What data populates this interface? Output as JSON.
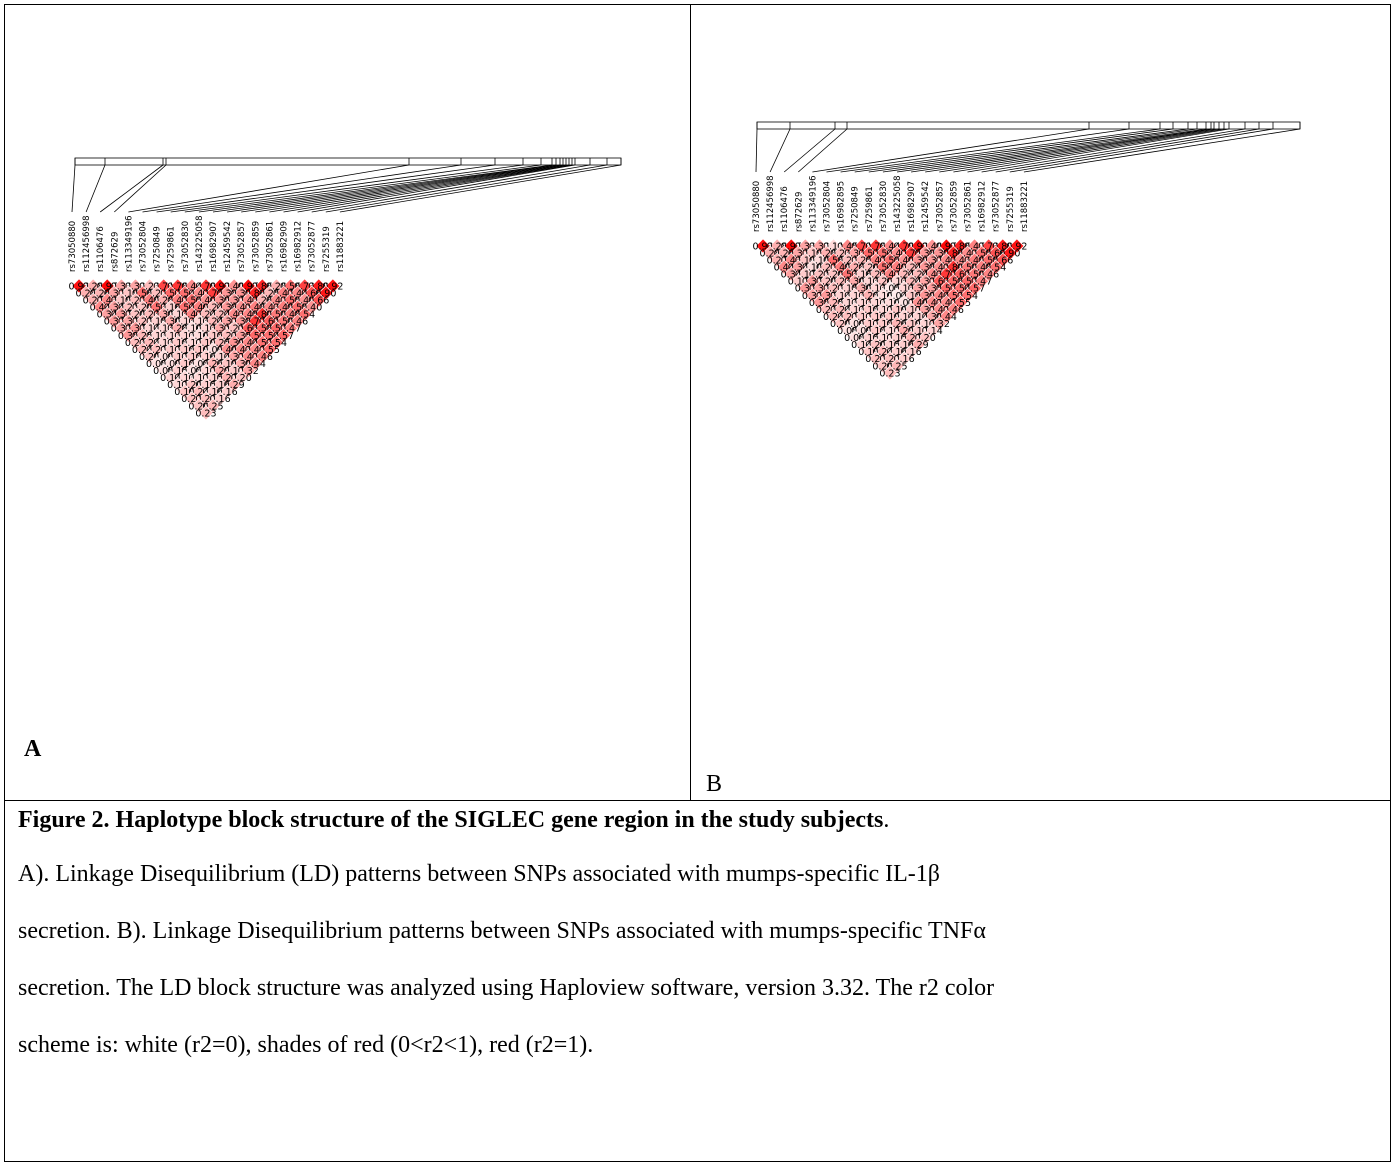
{
  "panels": [
    {
      "id": "A",
      "letter": "A",
      "snps": [
        "rs73050880",
        "rs112456998",
        "rs1106476",
        "rs872629",
        "rs113349196",
        "rs73052804",
        "rs7250849",
        "rs7259861",
        "rs73052830",
        "rs143225058",
        "rs16982907",
        "rs12459542",
        "rs73052857",
        "rs73052859",
        "rs73052861",
        "rs16982909",
        "rs16982912",
        "rs73052877",
        "rs7255319",
        "rs11883221"
      ],
      "ld_rows": [
        [
          0.93,
          0.28,
          0.97,
          0.33,
          0.32,
          0.23,
          0.71,
          0.78,
          0.44,
          0.79,
          0.92,
          0.4,
          0.97,
          0.86,
          0.28,
          0.56,
          0.73,
          0.89,
          0.92
        ],
        [
          0.28,
          0.26,
          0.32,
          0.19,
          0.56,
          0.22,
          0.57,
          0.54,
          0.42,
          0.75,
          0.38,
          0.39,
          0.86,
          0.25,
          0.47,
          0.44,
          0.66,
          0.9
        ],
        [
          0.27,
          0.43,
          0.19,
          0.22,
          0.49,
          0.28,
          0.47,
          0.55,
          0.4,
          0.39,
          0.37,
          0.43,
          0.26,
          0.42,
          0.55,
          0.4,
          0.66
        ],
        [
          0.44,
          0.34,
          0.21,
          0.2,
          0.53,
          0.16,
          0.54,
          0.49,
          0.24,
          0.38,
          0.41,
          0.48,
          0.43,
          0.49,
          0.55,
          0.4
        ],
        [
          0.34,
          0.37,
          0.2,
          0.23,
          0.3,
          0.13,
          0.47,
          0.24,
          0.24,
          0.43,
          0.45,
          0.8,
          0.5,
          0.48,
          0.54
        ],
        [
          0.37,
          0.32,
          0.22,
          0.15,
          0.3,
          0.13,
          0.13,
          0.24,
          0.32,
          0.38,
          0.77,
          0.61,
          0.5,
          0.46
        ],
        [
          0.32,
          0.37,
          0.14,
          0.13,
          0.28,
          0.1,
          0.13,
          0.31,
          0.21,
          0.63,
          0.58,
          0.57,
          0.47
        ],
        [
          0.38,
          0.25,
          0.13,
          0.13,
          0.13,
          0.1,
          0.18,
          0.23,
          0.35,
          0.57,
          0.54,
          0.57
        ],
        [
          0.23,
          0.24,
          0.13,
          0.18,
          0.12,
          0.19,
          0.25,
          0.39,
          0.44,
          0.53,
          0.54
        ],
        [
          0.24,
          0.22,
          0.17,
          0.18,
          0.19,
          0.09,
          0.4,
          0.43,
          0.42,
          0.55
        ],
        [
          0.2,
          0.09,
          0.17,
          0.18,
          0.16,
          0.14,
          0.32,
          0.42,
          0.46
        ],
        [
          0.08,
          0.09,
          0.18,
          0.08,
          0.26,
          0.19,
          0.3,
          0.44
        ],
        [
          0.08,
          0.15,
          0.08,
          0.12,
          0.29,
          0.17,
          0.32
        ],
        [
          0.14,
          0.13,
          0.12,
          0.15,
          0.27,
          0.2
        ],
        [
          0.12,
          0.2,
          0.15,
          0.16,
          0.29
        ],
        [
          0.19,
          0.24,
          0.16,
          0.16
        ],
        [
          0.22,
          0.22,
          0.16
        ],
        [
          0.2,
          0.25
        ],
        [
          0.23
        ]
      ]
    },
    {
      "id": "B",
      "letter": "B",
      "snps": [
        "rs73050880",
        "rs112456998",
        "rs1106476",
        "rs872629",
        "rs113349196",
        "rs73052804",
        "rs16982895",
        "rs7250849",
        "rs7259861",
        "rs73052830",
        "rs143225058",
        "rs16982907",
        "rs12459542",
        "rs73052857",
        "rs73052859",
        "rs73052861",
        "rs16982912",
        "rs73052877",
        "rs7255319",
        "rs11883221"
      ],
      "ld_rows": [
        [
          0.93,
          0.28,
          0.97,
          0.33,
          0.32,
          0.11,
          0.45,
          0.71,
          0.78,
          0.44,
          0.79,
          0.92,
          0.4,
          0.97,
          0.86,
          0.47,
          0.73,
          0.89,
          0.92
        ],
        [
          0.28,
          0.26,
          0.32,
          0.19,
          0.28,
          0.23,
          0.33,
          0.57,
          0.54,
          0.42,
          0.75,
          0.38,
          0.39,
          0.86,
          0.42,
          0.55,
          0.66,
          0.9
        ],
        [
          0.27,
          0.43,
          0.19,
          0.1,
          0.56,
          0.22,
          0.25,
          0.47,
          0.55,
          0.4,
          0.39,
          0.37,
          0.43,
          0.43,
          0.49,
          0.55,
          0.66
        ],
        [
          0.44,
          0.34,
          0.1,
          0.22,
          0.49,
          0.28,
          0.2,
          0.54,
          0.49,
          0.24,
          0.38,
          0.41,
          0.8,
          0.5,
          0.48,
          0.54
        ],
        [
          0.34,
          0.17,
          0.21,
          0.2,
          0.53,
          0.16,
          0.23,
          0.47,
          0.24,
          0.24,
          0.43,
          0.77,
          0.61,
          0.5,
          0.46
        ],
        [
          0.17,
          0.37,
          0.2,
          0.23,
          0.3,
          0.13,
          0.2,
          0.13,
          0.24,
          0.32,
          0.63,
          0.58,
          0.57,
          0.47
        ],
        [
          0.37,
          0.32,
          0.22,
          0.15,
          0.3,
          0.13,
          0.05,
          0.13,
          0.31,
          0.35,
          0.57,
          0.54,
          0.57
        ],
        [
          0.32,
          0.37,
          0.14,
          0.13,
          0.28,
          0.1,
          0.04,
          0.18,
          0.39,
          0.44,
          0.53,
          0.54
        ],
        [
          0.38,
          0.25,
          0.13,
          0.13,
          0.13,
          0.1,
          0.07,
          0.4,
          0.43,
          0.42,
          0.55
        ],
        [
          0.23,
          0.24,
          0.13,
          0.18,
          0.12,
          0.19,
          0.17,
          0.32,
          0.42,
          0.46
        ],
        [
          0.24,
          0.22,
          0.17,
          0.18,
          0.19,
          0.14,
          0.14,
          0.3,
          0.44
        ],
        [
          0.2,
          0.09,
          0.17,
          0.18,
          0.26,
          0.19,
          0.13,
          0.32
        ],
        [
          0.08,
          0.09,
          0.18,
          0.12,
          0.29,
          0.17,
          0.14
        ],
        [
          0.08,
          0.15,
          0.12,
          0.15,
          0.27,
          0.2
        ],
        [
          0.14,
          0.2,
          0.15,
          0.16,
          0.29
        ],
        [
          0.19,
          0.24,
          0.16,
          0.16
        ],
        [
          0.22,
          0.22,
          0.16
        ],
        [
          0.2,
          0.25
        ],
        [
          0.23
        ]
      ]
    }
  ],
  "caption": {
    "title": "Figure 2. Haplotype block structure of the SIGLEC gene region in the study subjects",
    "title_end": ".",
    "lines": [
      "A). Linkage Disequilibrium (LD) patterns between SNPs associated with mumps-specific IL-1β",
      "secretion. B). Linkage Disequilibrium patterns between SNPs associated with mumps-specific TNFα",
      "secretion. The LD block structure was analyzed using Haploview software, version 3.32. The r2 color",
      "scheme is: white (r2=0), shades of red (0<r2<1), red (r2=1)."
    ]
  }
}
